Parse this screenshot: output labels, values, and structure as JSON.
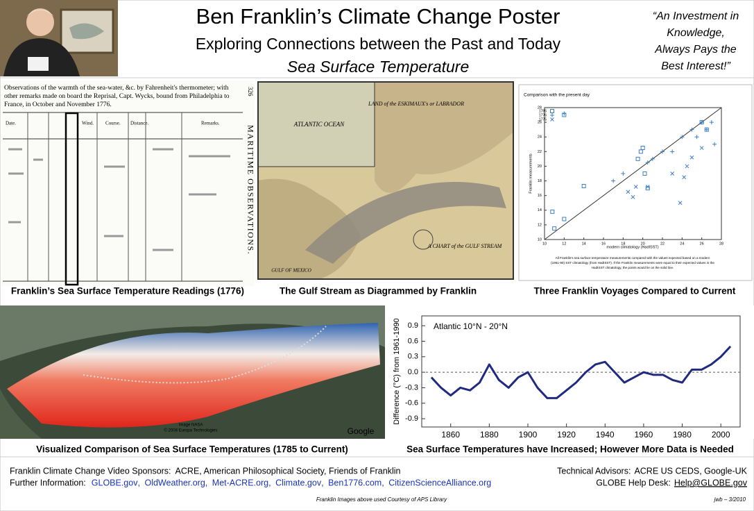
{
  "header": {
    "title": "Ben Franklin’s Climate Change Poster",
    "subtitle": "Exploring Connections between the Past and Today",
    "topic": "Sea Surface Temperature",
    "quote": [
      "“An Investment in",
      "Knowledge,",
      "Always Pays the",
      "Best Interest!”"
    ]
  },
  "panels": {
    "table": {
      "heading": [
        "Observations of the warmth of the sea-water, &c. by Fahrenheit's thermometer; with",
        "other remarks made on board the Reprisal, Capt. Wycks, bound from Philadelphia to",
        "France, in October and November 1776."
      ],
      "side_title": "MARITIME OBSERVATIONS.",
      "page_number": "326",
      "columns": [
        "Date.",
        "Wind.",
        "Course.",
        "Distance.",
        "Remarks."
      ],
      "caption": "Franklin’s Sea Surface Temperature Readings (1776)"
    },
    "map": {
      "labels": [
        "LAND of the ESKIMAUX's or LABRADOR",
        "ATLANTIC OCEAN",
        "A CHART of the GULF STREAM",
        "GULF OF MEXICO"
      ],
      "caption": "The Gulf Stream as Diagrammed by Franklin"
    },
    "scatter": {
      "type": "scatter",
      "title": "Comparison with the present day",
      "x_label": "modern climatology (HadISST)",
      "y_label": "Franklin measurements",
      "note": [
        "All Franklin's sea surface temperature measurements compared with the values expected based on a modern",
        "(1961-90) SST climatology (from HadISST). If the Franklin measurements were equal to their expected values in the",
        "HadISST climatology, the points would lie on the solid line."
      ],
      "xlim": [
        10,
        28
      ],
      "ylim": [
        10,
        28
      ],
      "xticks": [
        10,
        12,
        14,
        16,
        18,
        20,
        22,
        24,
        26,
        28
      ],
      "yticks": [
        10,
        12,
        14,
        16,
        18,
        20,
        22,
        24,
        26,
        28
      ],
      "color": "#3a7fc6",
      "series": [
        {
          "name": "1785",
          "marker": "square",
          "x": [
            10.8,
            11,
            12,
            12,
            14,
            19.5,
            19.8,
            20,
            20.2,
            20.5,
            26,
            26.5
          ],
          "y": [
            13.8,
            11.5,
            12.8,
            27,
            17.3,
            21,
            22,
            22.5,
            19,
            17,
            26,
            25
          ]
        },
        {
          "name": "1776",
          "marker": "plus",
          "x": [
            12,
            17,
            18,
            20.5,
            21,
            22,
            23,
            24,
            25,
            25.5,
            26,
            26.5,
            27,
            27.3
          ],
          "y": [
            27.2,
            18,
            19,
            20.5,
            21,
            22,
            22,
            24,
            25,
            24,
            26,
            25,
            26,
            23
          ]
        },
        {
          "name": "1775",
          "marker": "cross",
          "x": [
            18.5,
            19,
            19.3,
            20.5,
            23,
            23.8,
            24.2,
            24.5,
            25,
            26
          ],
          "y": [
            16.5,
            15.8,
            17.2,
            17.2,
            19,
            15,
            18.5,
            20,
            21.2,
            22.5
          ]
        }
      ],
      "caption": "Three Franklin Voyages Compared to Current"
    },
    "globe": {
      "credits": [
        "Image NASA",
        "© 2008 Europa Technologies",
        "Google"
      ],
      "caption": "Visualized Comparison of Sea Surface Temperatures (1785 to Current)"
    },
    "chart": {
      "type": "line",
      "title": "Atlantic 10°N - 20°N",
      "y_label": "Difference (°C) from 1961-1990",
      "x": [
        1850,
        1855,
        1860,
        1865,
        1870,
        1875,
        1880,
        1885,
        1890,
        1895,
        1900,
        1905,
        1910,
        1915,
        1920,
        1925,
        1930,
        1935,
        1940,
        1945,
        1950,
        1955,
        1960,
        1965,
        1970,
        1975,
        1980,
        1985,
        1990,
        1995,
        2000,
        2005
      ],
      "series": [
        {
          "name": "smoothed",
          "color": "#1f2a80",
          "values": [
            -0.1,
            -0.3,
            -0.45,
            -0.3,
            -0.35,
            -0.2,
            0.15,
            -0.15,
            -0.3,
            -0.1,
            0.0,
            -0.3,
            -0.5,
            -0.5,
            -0.35,
            -0.2,
            0.0,
            0.15,
            0.2,
            0.0,
            -0.2,
            -0.1,
            0.0,
            -0.05,
            -0.05,
            -0.15,
            -0.2,
            0.05,
            0.05,
            0.15,
            0.3,
            0.5
          ]
        }
      ],
      "xlim": [
        1845,
        2010
      ],
      "ylim": [
        -1.06,
        1.09
      ],
      "xticks": [
        1860,
        1880,
        1900,
        1920,
        1940,
        1960,
        1980,
        2000
      ],
      "yticks": [
        0.9,
        0.6,
        0.3,
        {
          "value": 0,
          "label": "0.0"
        },
        -0.3,
        -0.6,
        -0.9
      ],
      "caption": "Sea Surface Temperatures have Increased; However More Data is Needed"
    }
  },
  "footer": {
    "sponsors_label": "Franklin Climate Change Video Sponsors:",
    "sponsors": "ACRE,  American Philosophical Society,  Friends of Franklin",
    "info_label": "Further Information:",
    "links": [
      "GLOBE.gov",
      "OldWeather.org",
      "Met-ACRE.org",
      "Climate.gov",
      "Ben1776.com",
      "CitizenScienceAlliance.org"
    ],
    "advisors_label": "Technical Advisors:",
    "advisors": "ACRE US CEDS, Google-UK",
    "helpdesk_label": "GLOBE Help Desk:",
    "helpdesk": "Help@GLOBE.gov",
    "credit": "Franklin Images above used Courtesy of APS Library",
    "signature": "jwb – 3/2010"
  }
}
